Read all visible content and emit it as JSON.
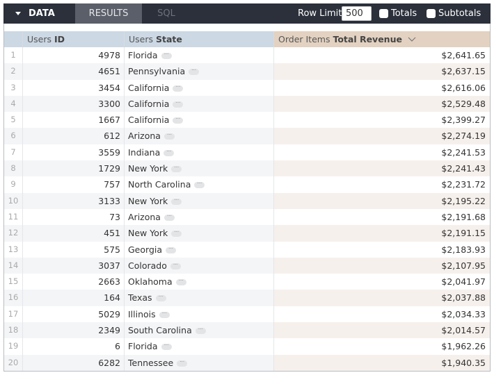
{
  "toolbar": {
    "data_label": "DATA",
    "results_label": "RESULTS",
    "sql_label": "SQL",
    "row_limit_label": "Row Limit",
    "row_limit_value": "500",
    "totals_label": "Totals",
    "subtotals_label": "Subtotals"
  },
  "columns": {
    "id": {
      "prefix": "Users",
      "name": "ID",
      "bg": "#ccd8e4"
    },
    "state": {
      "prefix": "Users",
      "name": "State",
      "bg": "#ccd8e4"
    },
    "revenue": {
      "prefix": "Order Items",
      "name": "Total Revenue",
      "bg": "#e3d2c1",
      "sort": "descending"
    }
  },
  "rows": [
    {
      "n": "1",
      "id": "4978",
      "state": "Florida",
      "revenue": "$2,641.65"
    },
    {
      "n": "2",
      "id": "4651",
      "state": "Pennsylvania",
      "revenue": "$2,637.15"
    },
    {
      "n": "3",
      "id": "3454",
      "state": "California",
      "revenue": "$2,616.06"
    },
    {
      "n": "4",
      "id": "3300",
      "state": "California",
      "revenue": "$2,529.48"
    },
    {
      "n": "5",
      "id": "1667",
      "state": "California",
      "revenue": "$2,399.27"
    },
    {
      "n": "6",
      "id": "612",
      "state": "Arizona",
      "revenue": "$2,274.19"
    },
    {
      "n": "7",
      "id": "3559",
      "state": "Indiana",
      "revenue": "$2,241.53"
    },
    {
      "n": "8",
      "id": "1729",
      "state": "New York",
      "revenue": "$2,241.43"
    },
    {
      "n": "9",
      "id": "757",
      "state": "North Carolina",
      "revenue": "$2,231.72"
    },
    {
      "n": "10",
      "id": "3133",
      "state": "New York",
      "revenue": "$2,195.22"
    },
    {
      "n": "11",
      "id": "73",
      "state": "Arizona",
      "revenue": "$2,191.68"
    },
    {
      "n": "12",
      "id": "451",
      "state": "New York",
      "revenue": "$2,191.15"
    },
    {
      "n": "13",
      "id": "575",
      "state": "Georgia",
      "revenue": "$2,183.93"
    },
    {
      "n": "14",
      "id": "3037",
      "state": "Colorado",
      "revenue": "$2,107.95"
    },
    {
      "n": "15",
      "id": "2663",
      "state": "Oklahoma",
      "revenue": "$2,041.97"
    },
    {
      "n": "16",
      "id": "164",
      "state": "Texas",
      "revenue": "$2,037.88"
    },
    {
      "n": "17",
      "id": "5029",
      "state": "Illinois",
      "revenue": "$2,034.33"
    },
    {
      "n": "18",
      "id": "2349",
      "state": "South Carolina",
      "revenue": "$2,014.57"
    },
    {
      "n": "19",
      "id": "6",
      "state": "Florida",
      "revenue": "$1,962.26"
    },
    {
      "n": "20",
      "id": "6282",
      "state": "Tennessee",
      "revenue": "$1,940.35"
    }
  ]
}
